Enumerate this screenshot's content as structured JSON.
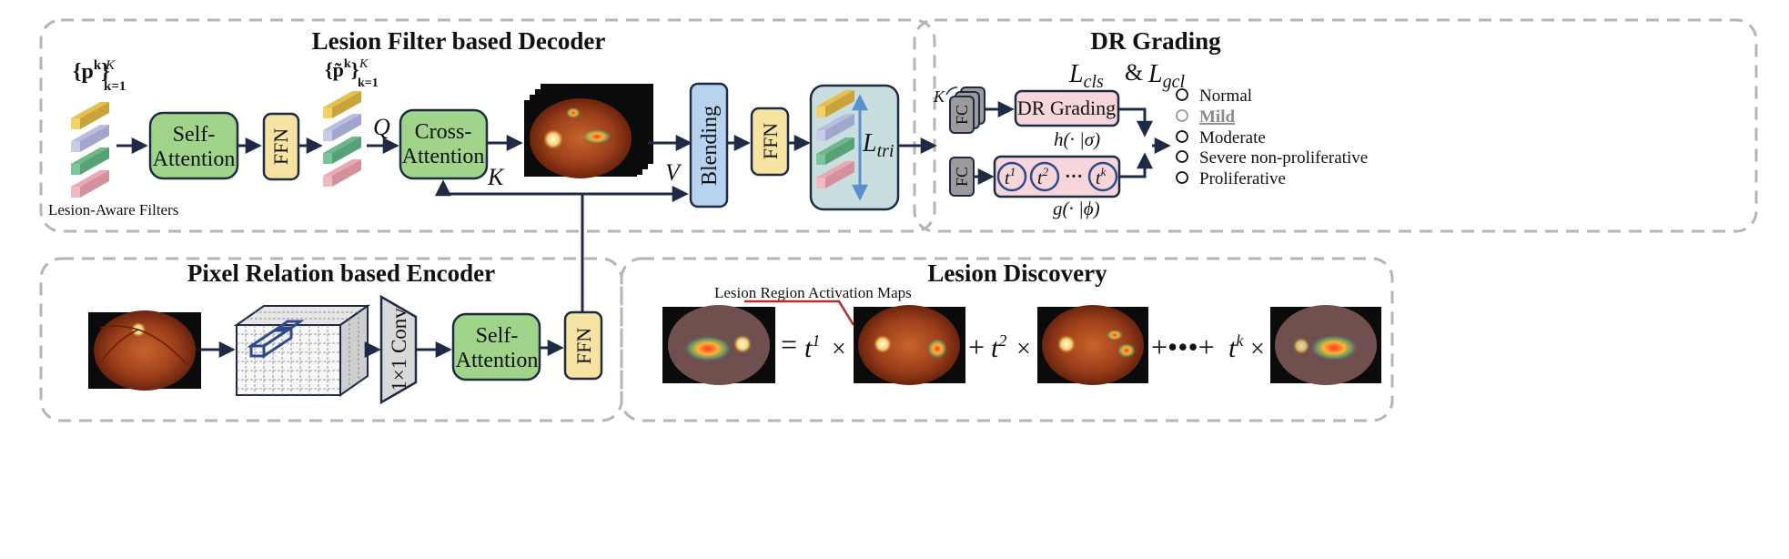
{
  "sections": {
    "decoder": "Lesion Filter based Decoder",
    "grading": "DR Grading",
    "encoder": "Pixel Relation based Encoder",
    "discovery": "Lesion Discovery"
  },
  "filters": {
    "p_sym": "{p",
    "p_sup": "k",
    "p_close": "}",
    "p_K": "K",
    "p_sub": "k=1",
    "pt_sym": "{p̃",
    "pt_sup": "k",
    "pt_close": "}",
    "pt_K": "K",
    "pt_sub": "k=1",
    "caption": "Lesion-Aware Filters"
  },
  "blocks": {
    "self_attention_1": "Self-",
    "self_attention_2": "Attention",
    "ffn": "FFN",
    "cross_attention_1": "Cross-",
    "cross_attention_2": "Attention",
    "blending": "Blending",
    "conv": "1×1 Conv",
    "fc": "FC"
  },
  "symbols": {
    "q": "Q",
    "k": "K",
    "v": "V",
    "l_tri_main": "L",
    "l_tri_sub": "tri",
    "K_fc": "K"
  },
  "grading": {
    "loss_l": "L",
    "loss_cls": "cls",
    "loss_amp": "&",
    "loss_l2": "L",
    "loss_gcl": "gcl",
    "dr_box": "DR Grading",
    "h_func": "h(· |σ)",
    "g_func": "g(· |ϕ)",
    "t1": "t",
    "t1_sup": "1",
    "t2": "t",
    "t2_sup": "2",
    "dots": "···",
    "tk": "t",
    "tk_sup": "k",
    "classes": [
      "Normal",
      "Mild",
      "Moderate",
      "Severe non-proliferative",
      "Proliferative"
    ],
    "selected_class": "Mild"
  },
  "discovery": {
    "label": "Lesion Region Activation Maps",
    "eq": "=",
    "t": "t",
    "sup1": "1",
    "sup2": "2",
    "supk": "k",
    "times": "×",
    "plus": "+",
    "dots_plus": "+•••+"
  },
  "colors": {
    "yellow": "#f2d264",
    "lavender": "#c9cce8",
    "green": "#7cc59a",
    "pink": "#f1b9c1",
    "sa_green": "#9fd48a",
    "ffn_yellow": "#f6e3a1",
    "blend_blue": "#b8d3f0",
    "panel_teal": "#c9dede",
    "fc_gray": "#9b9b9b",
    "dr_pink": "#f6d6db",
    "navy": "#1f2a44",
    "dash": "#b5b5b5"
  }
}
